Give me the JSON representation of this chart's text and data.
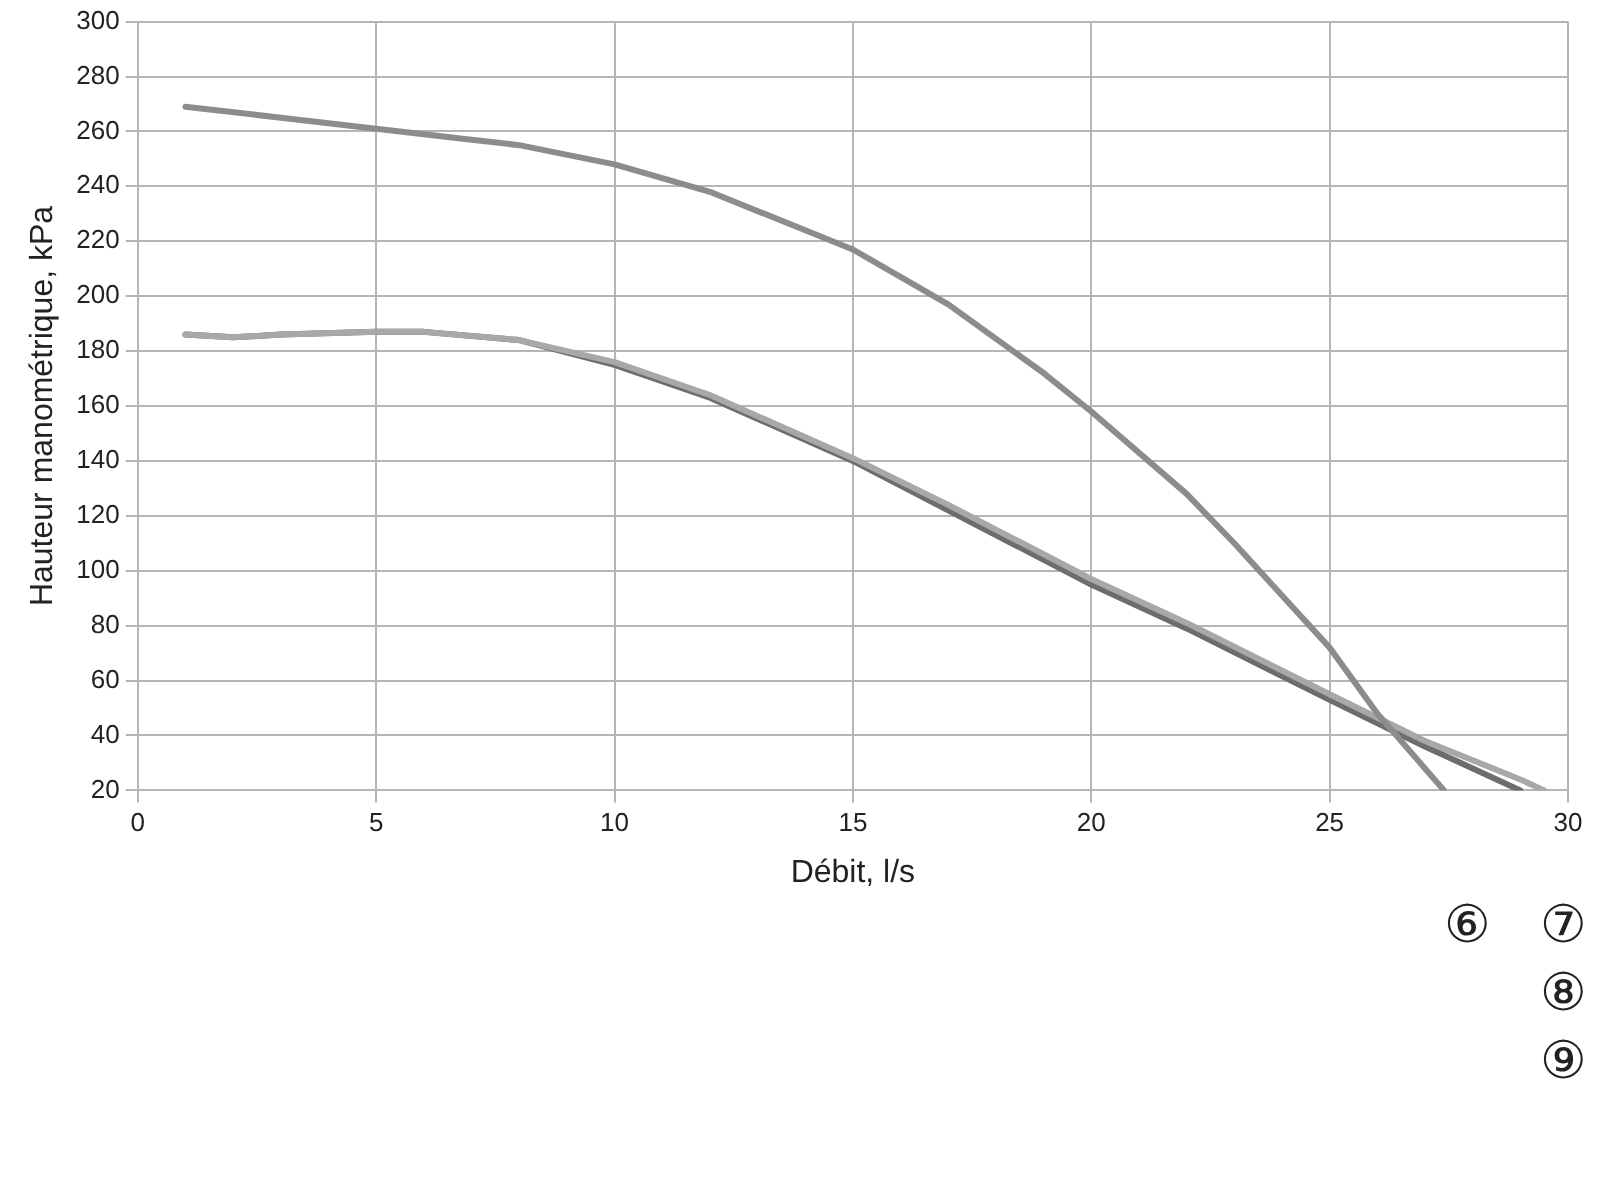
{
  "chart_data": {
    "type": "line",
    "xlabel": "Débit, l/s",
    "ylabel": "Hauteur manométrique, kPa",
    "xlim": [
      0,
      30
    ],
    "xticks": [
      0,
      5,
      10,
      15,
      20,
      25,
      30
    ],
    "ylim": [
      20,
      300
    ],
    "yticks": [
      20,
      40,
      60,
      80,
      100,
      120,
      140,
      160,
      180,
      200,
      220,
      240,
      260,
      280,
      300
    ],
    "grid": true,
    "legend": false,
    "marker": "none",
    "line_style": "solid",
    "series": [
      {
        "color": "#8c8c8c",
        "x": [
          1,
          3,
          5,
          7,
          8,
          10,
          12,
          14,
          15,
          17,
          19,
          20,
          22,
          23,
          25,
          26,
          27,
          27.4
        ],
        "values": [
          269,
          265,
          261,
          257,
          255,
          248,
          238,
          224,
          217,
          197,
          172,
          158,
          128,
          110,
          72,
          48,
          28,
          20
        ]
      },
      {
        "color": "#a8a8a8",
        "x": [
          1,
          2,
          3,
          5,
          6,
          8,
          10,
          12,
          15,
          17,
          20,
          22,
          25,
          27,
          29,
          29.5
        ],
        "values": [
          186,
          185,
          186,
          187,
          187,
          184,
          176,
          164,
          141,
          124,
          97,
          81,
          55,
          38,
          24,
          20
        ]
      },
      {
        "color": "#6d6d6d",
        "x": [
          1,
          2,
          3,
          5,
          6,
          8,
          10,
          12,
          15,
          17,
          20,
          22,
          25,
          27,
          29
        ],
        "values": [
          186,
          185,
          186,
          187,
          187,
          184,
          175,
          163,
          140,
          122,
          95,
          79,
          53,
          36,
          20
        ]
      }
    ],
    "annotations": [
      "⑥",
      "⑦",
      "⑧",
      "⑨"
    ]
  }
}
